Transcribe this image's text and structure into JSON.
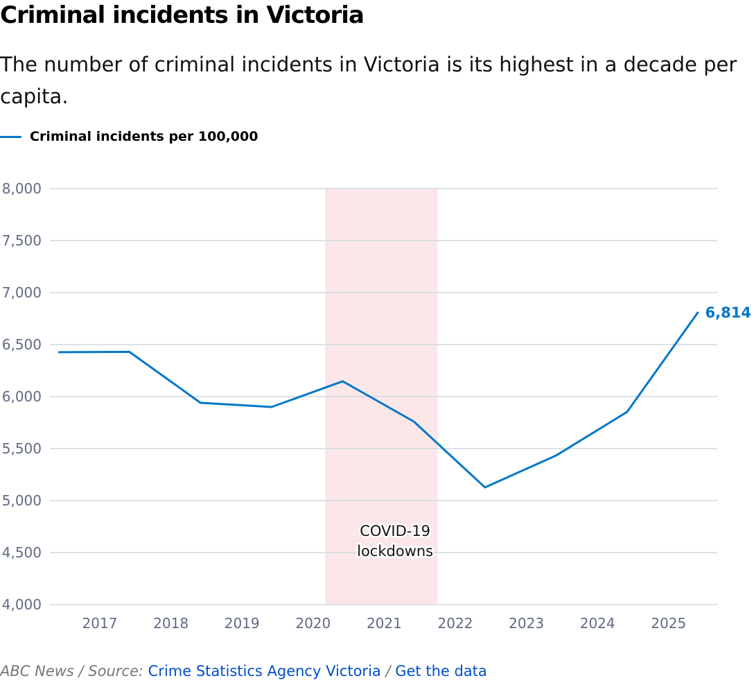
{
  "header": {
    "title": "Criminal incidents in Victoria",
    "subtitle": "The number of criminal incidents in Victoria is its highest in a decade per capita."
  },
  "footer": {
    "credit": "ABC News / Source:",
    "source_link": "Crime Statistics Agency Victoria",
    "separator": "/",
    "data_link": "Get the data"
  },
  "colors": {
    "series": "#0077c8",
    "shade": "#fbe7e8",
    "grid": "#d3d7de",
    "axis_text": "#5f6b82",
    "link": "#0050c8"
  },
  "chart_data": {
    "type": "line",
    "title": "Criminal incidents in Victoria",
    "xlabel": "",
    "ylabel": "",
    "ylim": [
      4000,
      8000
    ],
    "yticks": [
      "4,000",
      "4,500",
      "5,000",
      "5,500",
      "6,000",
      "6,500",
      "7,000",
      "7,500",
      "8,000"
    ],
    "xticks": [
      "2017",
      "2018",
      "2019",
      "2020",
      "2021",
      "2022",
      "2023",
      "2024",
      "2025"
    ],
    "grid": true,
    "legend_placement": "top-left",
    "series": [
      {
        "name": "Criminal incidents per 100,000",
        "x": [
          "2016-06",
          "2017-06",
          "2018-06",
          "2019-06",
          "2020-06",
          "2021-06",
          "2022-06",
          "2023-06",
          "2024-06",
          "2025-06"
        ],
        "values": [
          6427,
          6430,
          5940,
          5900,
          6147,
          5760,
          5127,
          5433,
          5853,
          6814
        ]
      }
    ],
    "end_label": "6,814",
    "annotations": [
      {
        "type": "shaded-range",
        "from": "2020-03",
        "to": "2021-10",
        "label_lines": [
          "COVID-19",
          "lockdowns"
        ]
      }
    ]
  }
}
